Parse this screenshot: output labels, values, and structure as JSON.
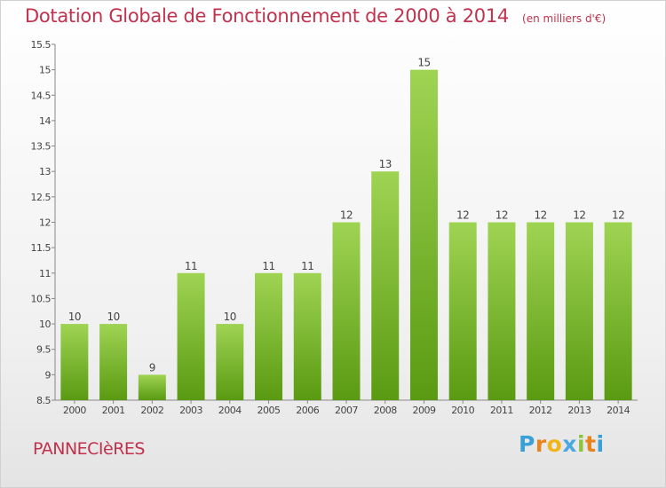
{
  "header": {
    "title": "Dotation Globale de Fonctionnement de 2000 à 2014",
    "unit": "(en milliers d'€)"
  },
  "footer": {
    "commune": "PANNECIèRES",
    "logo": "Proxiti"
  },
  "colors": {
    "title": "#c0324d",
    "bar_top": "#9fd453",
    "bar_bottom": "#5a9a12"
  },
  "chart_data": {
    "type": "bar",
    "title": "Dotation Globale de Fonctionnement de 2000 à 2014",
    "subtitle": "(en milliers d'€)",
    "categories": [
      "2000",
      "2001",
      "2002",
      "2003",
      "2004",
      "2005",
      "2006",
      "2007",
      "2008",
      "2009",
      "2010",
      "2011",
      "2012",
      "2013",
      "2014"
    ],
    "values": [
      10,
      10,
      9,
      11,
      10,
      11,
      11,
      12,
      13,
      15,
      12,
      12,
      12,
      12,
      12
    ],
    "ylim": [
      8.5,
      15.5
    ],
    "yticks": [
      "8.5",
      "9",
      "9.5",
      "10",
      "10.5",
      "11",
      "11.5",
      "12",
      "12.5",
      "13",
      "13.5",
      "14",
      "14.5",
      "15",
      "15.5"
    ],
    "grid": false,
    "legend": "none"
  }
}
